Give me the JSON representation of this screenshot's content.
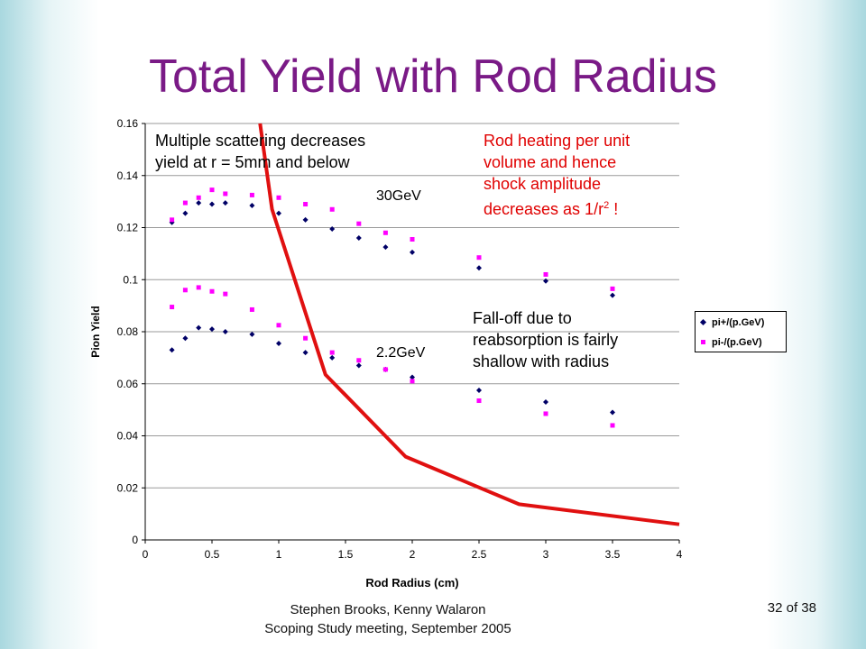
{
  "slide": {
    "title": "Total Yield with Rod Radius",
    "footer_line1": "Stephen Brooks, Kenny Walaron",
    "footer_line2": "Scoping Study meeting, September 2005",
    "page": "32 of 38"
  },
  "annotations": {
    "multiple_scattering": "Multiple scattering decreases\nyield at r = 5mm and below",
    "rod_heating": "Rod heating per unit\nvolume and hence\nshock amplitude\ndecreases as 1/r",
    "rod_heating_sup": "2",
    "rod_heating_end": " !",
    "fall_off": "Fall-off due to\nreabsorption is fairly\nshallow with radius",
    "label_30gev": "30GeV",
    "label_22gev": "2.2GeV"
  },
  "colors": {
    "title": "#7a1a86",
    "pi_plus": "#000066",
    "pi_minus": "#ff00ff",
    "heating_curve": "#e01010",
    "rod_heating_text": "#e00000"
  },
  "chart_data": {
    "type": "scatter",
    "xlabel": "Rod Radius (cm)",
    "ylabel": "Pion Yield",
    "xlim": [
      0,
      4
    ],
    "ylim": [
      0,
      0.16
    ],
    "xticks": [
      "0",
      "0.5",
      "1",
      "1.5",
      "2",
      "2.5",
      "3",
      "3.5",
      "4"
    ],
    "yticks": [
      "0",
      "0.02",
      "0.04",
      "0.06",
      "0.08",
      "0.1",
      "0.12",
      "0.14",
      "0.16"
    ],
    "grid": "horizontal",
    "legend_position": "right",
    "series": [
      {
        "name": "pi+/(p.GeV)",
        "marker": "diamond",
        "color": "#000066",
        "x": [
          0.2,
          0.3,
          0.4,
          0.5,
          0.6,
          0.8,
          1.0,
          1.2,
          1.4,
          1.6,
          1.8,
          2.0,
          2.5,
          3.0,
          3.5,
          0.2,
          0.3,
          0.4,
          0.5,
          0.6,
          0.8,
          1.0,
          1.2,
          1.4,
          1.6,
          1.8,
          2.0,
          2.5,
          3.0,
          3.5
        ],
        "y": [
          0.122,
          0.1255,
          0.1295,
          0.129,
          0.1295,
          0.1285,
          0.1255,
          0.123,
          0.1195,
          0.116,
          0.1125,
          0.1105,
          0.1045,
          0.0995,
          0.094,
          0.073,
          0.0775,
          0.0815,
          0.081,
          0.08,
          0.079,
          0.0755,
          0.072,
          0.07,
          0.067,
          0.0655,
          0.0625,
          0.0575,
          0.053,
          0.049
        ]
      },
      {
        "name": "pi-/(p.GeV)",
        "marker": "square",
        "color": "#ff00ff",
        "x": [
          0.2,
          0.3,
          0.4,
          0.5,
          0.6,
          0.8,
          1.0,
          1.2,
          1.4,
          1.6,
          1.8,
          2.0,
          2.5,
          3.0,
          3.5,
          0.2,
          0.3,
          0.4,
          0.5,
          0.6,
          0.8,
          1.0,
          1.2,
          1.4,
          1.6,
          1.8,
          2.0,
          2.5,
          3.0,
          3.5
        ],
        "y": [
          0.123,
          0.1295,
          0.1315,
          0.1345,
          0.133,
          0.1325,
          0.1315,
          0.129,
          0.127,
          0.1215,
          0.118,
          0.1155,
          0.1085,
          0.102,
          0.0965,
          0.0895,
          0.096,
          0.097,
          0.0955,
          0.0945,
          0.0885,
          0.0825,
          0.0775,
          0.072,
          0.069,
          0.0655,
          0.061,
          0.0535,
          0.0485,
          0.044
        ]
      }
    ],
    "curve": {
      "color": "#e01010",
      "x": [
        0.86,
        0.95,
        1.35,
        1.95,
        2.8,
        4.0
      ],
      "y": [
        0.16,
        0.127,
        0.0635,
        0.032,
        0.0137,
        0.006
      ]
    }
  }
}
